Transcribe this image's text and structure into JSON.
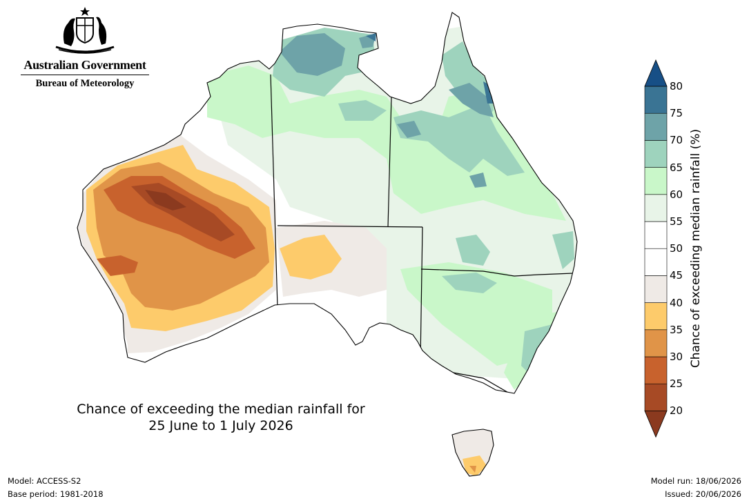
{
  "header": {
    "government": "Australian Government",
    "agency": "Bureau of Meteorology"
  },
  "map": {
    "title_line1": "Chance of exceeding the median rainfall for",
    "title_line2": "25 June to 1 July 2026",
    "region": "Australia"
  },
  "colorbar": {
    "label": "Chance of exceeding median rainfall (%)",
    "ticks": [
      "20",
      "25",
      "30",
      "35",
      "40",
      "45",
      "50",
      "55",
      "60",
      "65",
      "70",
      "75",
      "80"
    ],
    "bins": [
      {
        "range": "<20",
        "color": "#8b3a1f"
      },
      {
        "range": "20-25",
        "color": "#a74a25"
      },
      {
        "range": "25-30",
        "color": "#c8622d"
      },
      {
        "range": "30-35",
        "color": "#e09448"
      },
      {
        "range": "35-40",
        "color": "#fdcb6b"
      },
      {
        "range": "40-45",
        "color": "#efeae6"
      },
      {
        "range": "45-50",
        "color": "#ffffff"
      },
      {
        "range": "50-55",
        "color": "#ffffff"
      },
      {
        "range": "55-60",
        "color": "#e8f4e8"
      },
      {
        "range": "60-65",
        "color": "#c9f7c9"
      },
      {
        "range": "65-70",
        "color": "#9ed3bd"
      },
      {
        "range": "70-75",
        "color": "#6ea3a8"
      },
      {
        "range": "75-80",
        "color": "#3a7494"
      },
      {
        "range": ">80",
        "color": "#174f86"
      }
    ]
  },
  "footer": {
    "model": "Model: ACCESS-S2",
    "base_period": "Base period: 1981-2018",
    "model_run": "Model run: 18/06/2026",
    "issued": "Issued: 20/06/2026"
  }
}
